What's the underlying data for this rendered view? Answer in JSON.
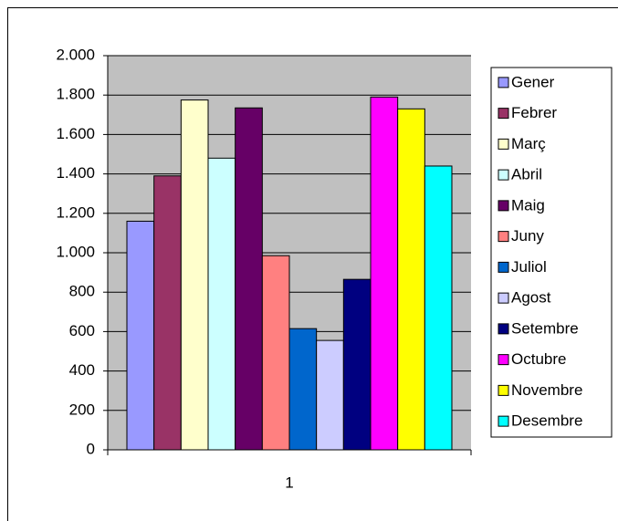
{
  "chart_data": {
    "type": "bar",
    "categories": [
      "1"
    ],
    "series": [
      {
        "name": "Gener",
        "color": "#9999ff",
        "values": [
          1160
        ]
      },
      {
        "name": "Febrer",
        "color": "#993366",
        "values": [
          1390
        ]
      },
      {
        "name": "Març",
        "color": "#ffffcc",
        "values": [
          1775
        ]
      },
      {
        "name": "Abril",
        "color": "#ccffff",
        "values": [
          1480
        ]
      },
      {
        "name": "Maig",
        "color": "#660066",
        "values": [
          1735
        ]
      },
      {
        "name": "Juny",
        "color": "#ff8080",
        "values": [
          985
        ]
      },
      {
        "name": "Juliol",
        "color": "#0066cc",
        "values": [
          615
        ]
      },
      {
        "name": "Agost",
        "color": "#ccccff",
        "values": [
          555
        ]
      },
      {
        "name": "Setembre",
        "color": "#000080",
        "values": [
          865
        ]
      },
      {
        "name": "Octubre",
        "color": "#ff00ff",
        "values": [
          1790
        ]
      },
      {
        "name": "Novembre",
        "color": "#ffff00",
        "values": [
          1730
        ]
      },
      {
        "name": "Desembre",
        "color": "#00ffff",
        "values": [
          1440
        ]
      }
    ],
    "ylim": [
      0,
      2000
    ],
    "yticks": [
      0,
      200,
      400,
      600,
      800,
      {
        "value": 1000,
        "label": "1.000"
      },
      {
        "value": 1200,
        "label": "1.200"
      },
      {
        "value": 1400,
        "label": "1.400"
      },
      {
        "value": 1600,
        "label": "1.600"
      },
      {
        "value": 1800,
        "label": "1.800"
      },
      {
        "value": 2000,
        "label": "2.000"
      }
    ],
    "grid": true,
    "legend": "right",
    "plot_background": "#c0c0c0"
  }
}
